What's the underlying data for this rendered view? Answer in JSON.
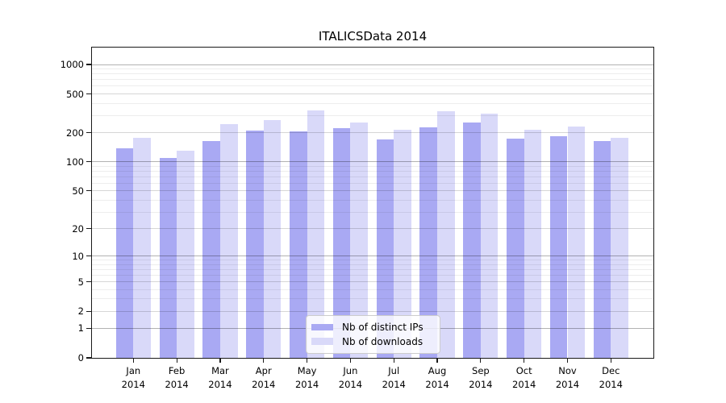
{
  "chart_data": {
    "type": "bar",
    "title": "ITALICSData 2014",
    "categories": [
      "Jan",
      "Feb",
      "Mar",
      "Apr",
      "May",
      "Jun",
      "Jul",
      "Aug",
      "Sep",
      "Oct",
      "Nov",
      "Dec"
    ],
    "year": "2014",
    "series": [
      {
        "name": "Nb of distinct IPs",
        "color": "#a9a9f3",
        "values": [
          138,
          110,
          165,
          210,
          205,
          224,
          172,
          228,
          254,
          173,
          185,
          165
        ]
      },
      {
        "name": "Nb of downloads",
        "color": "#d9d9f9",
        "values": [
          178,
          130,
          245,
          270,
          340,
          256,
          216,
          330,
          315,
          215,
          231,
          178
        ]
      }
    ],
    "xlabel": "",
    "ylabel": "",
    "yscale": "log1p",
    "ylim": [
      0,
      1500
    ],
    "yticks": [
      0,
      1,
      2,
      5,
      10,
      20,
      50,
      100,
      200,
      500,
      1000
    ],
    "grid": {
      "major": [
        1,
        10,
        100,
        1000
      ],
      "labeled_minor": [
        2,
        5,
        20,
        50,
        200,
        500
      ],
      "minor": [
        3,
        4,
        6,
        7,
        8,
        9,
        30,
        40,
        60,
        70,
        80,
        90,
        300,
        400,
        600,
        700,
        800,
        900
      ]
    },
    "grid_on": true,
    "legend_position": "lower center",
    "colors": {
      "grid_major": "rgba(0,0,0,0.30)",
      "grid_labeled_minor": "rgba(0,0,0,0.16)",
      "grid_minor": "rgba(0,0,0,0.07)",
      "spine": "#1a1a1a",
      "background": "#ffffff"
    }
  }
}
